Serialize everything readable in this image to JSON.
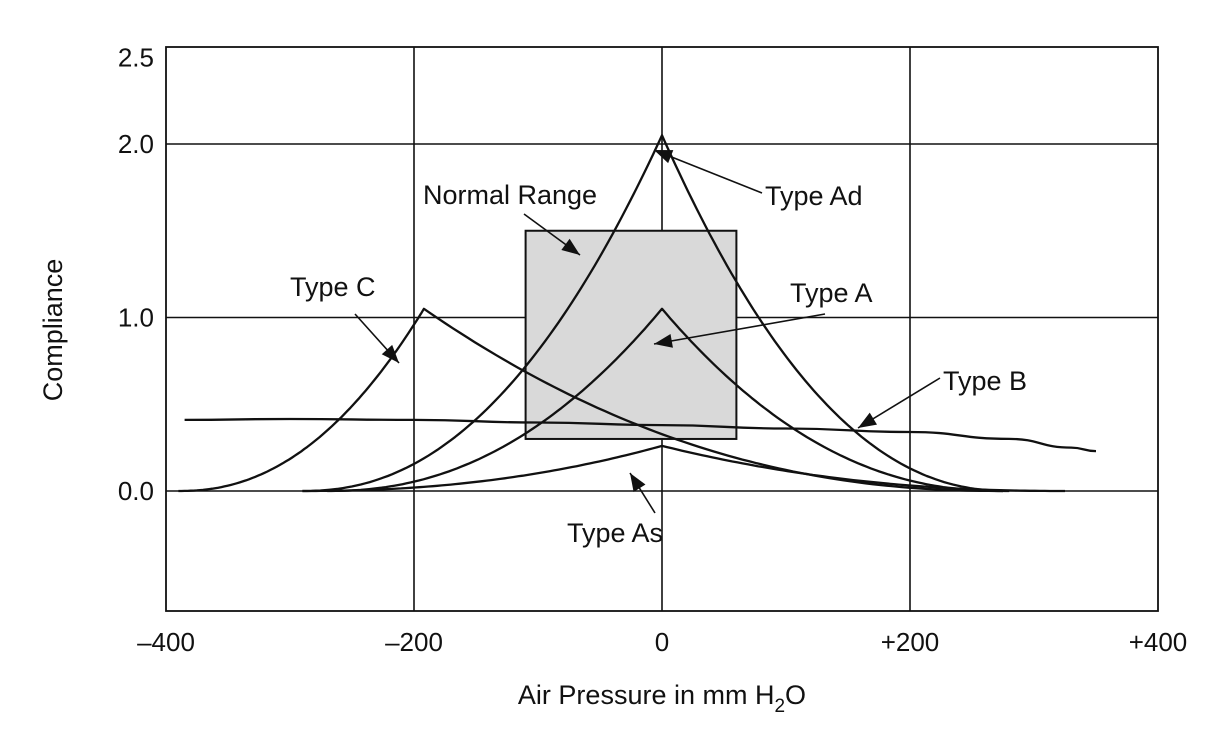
{
  "chart_data": {
    "type": "line",
    "xlabel_parts": [
      "Air Pressure in mm H",
      "2",
      "O"
    ],
    "ylabel": "Compliance",
    "xlim": [
      -400,
      400
    ],
    "ylim": [
      -0.7,
      2.5
    ],
    "x_ticks": [
      -400,
      -200,
      0,
      200,
      400
    ],
    "x_tick_labels": [
      "–400",
      "–200",
      "0",
      "+200",
      "+400"
    ],
    "y_ticks": [
      0.0,
      1.0,
      2.0,
      2.5
    ],
    "y_tick_labels": [
      "0.0",
      "1.0",
      "2.0",
      "2.5"
    ],
    "grid": true,
    "normal_range": {
      "label": "Normal Range",
      "x": [
        -110,
        60
      ],
      "y": [
        0.3,
        1.5
      ],
      "color": "#d9d9d9"
    },
    "series": [
      {
        "name": "Type Ad",
        "peak_x": 0,
        "peak_y": 2.05,
        "x_start": -290,
        "x_end": 280,
        "y_base": 0.0
      },
      {
        "name": "Type A",
        "peak_x": 0,
        "peak_y": 1.05,
        "x_start": -270,
        "x_end": 275,
        "y_base": 0.0
      },
      {
        "name": "Type As",
        "peak_x": 0,
        "peak_y": 0.26,
        "x_start": -290,
        "x_end": 325,
        "y_base": 0.0
      },
      {
        "name": "Type C",
        "peak_x": -192,
        "peak_y": 1.05,
        "x_start": -390,
        "x_end": 275,
        "y_base": 0.0
      },
      {
        "name": "Type B",
        "points": [
          [
            -385,
            0.41
          ],
          [
            -300,
            0.415
          ],
          [
            -200,
            0.41
          ],
          [
            -100,
            0.395
          ],
          [
            0,
            0.38
          ],
          [
            100,
            0.36
          ],
          [
            200,
            0.34
          ],
          [
            280,
            0.3
          ],
          [
            330,
            0.25
          ],
          [
            350,
            0.23
          ]
        ]
      }
    ],
    "annotations": [
      {
        "name": "Type Ad",
        "text": "Type Ad"
      },
      {
        "name": "Type A",
        "text": "Type A"
      },
      {
        "name": "Type B",
        "text": "Type B"
      },
      {
        "name": "Type C",
        "text": "Type C"
      },
      {
        "name": "Type As",
        "text": "Type As"
      }
    ]
  }
}
